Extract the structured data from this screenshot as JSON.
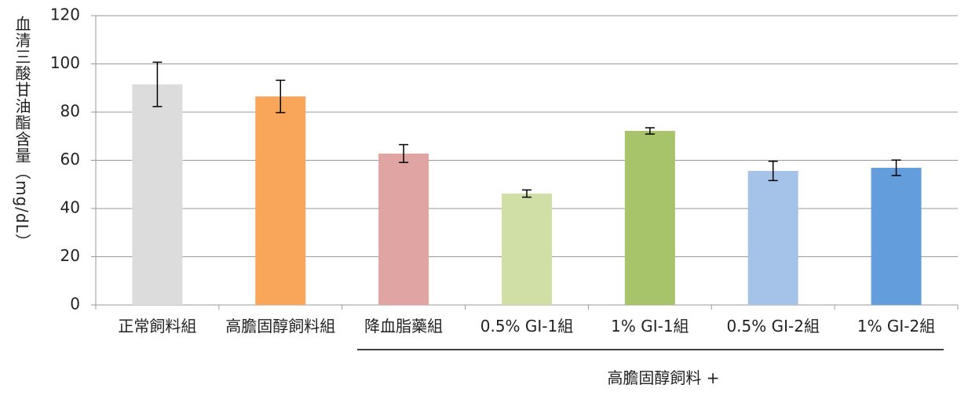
{
  "chart_data": {
    "type": "bar",
    "y_label": "血清三酸甘油酯含量（mg/dL）",
    "group_label": "高膽固醇飼料 +",
    "categories": [
      "正常飼料組",
      "高膽固醇飼料組",
      "降血脂藥組",
      "0.5% GI-1組",
      "1% GI-1組",
      "0.5% GI-2組",
      "1% GI-2組"
    ],
    "values": [
      91.5,
      86.5,
      62.8,
      46.2,
      72.2,
      55.6,
      56.9
    ],
    "errors": [
      9.2,
      6.7,
      3.7,
      1.5,
      1.3,
      4.0,
      3.2
    ],
    "colors": [
      "#dcdcdc",
      "#f9a55a",
      "#e0a4a2",
      "#cfdfa6",
      "#a7c46a",
      "#a5c3e9",
      "#649ddc"
    ],
    "ylim": [
      0,
      120
    ],
    "yticks": [
      0,
      20,
      40,
      60,
      80,
      100,
      120
    ],
    "grid": true
  }
}
